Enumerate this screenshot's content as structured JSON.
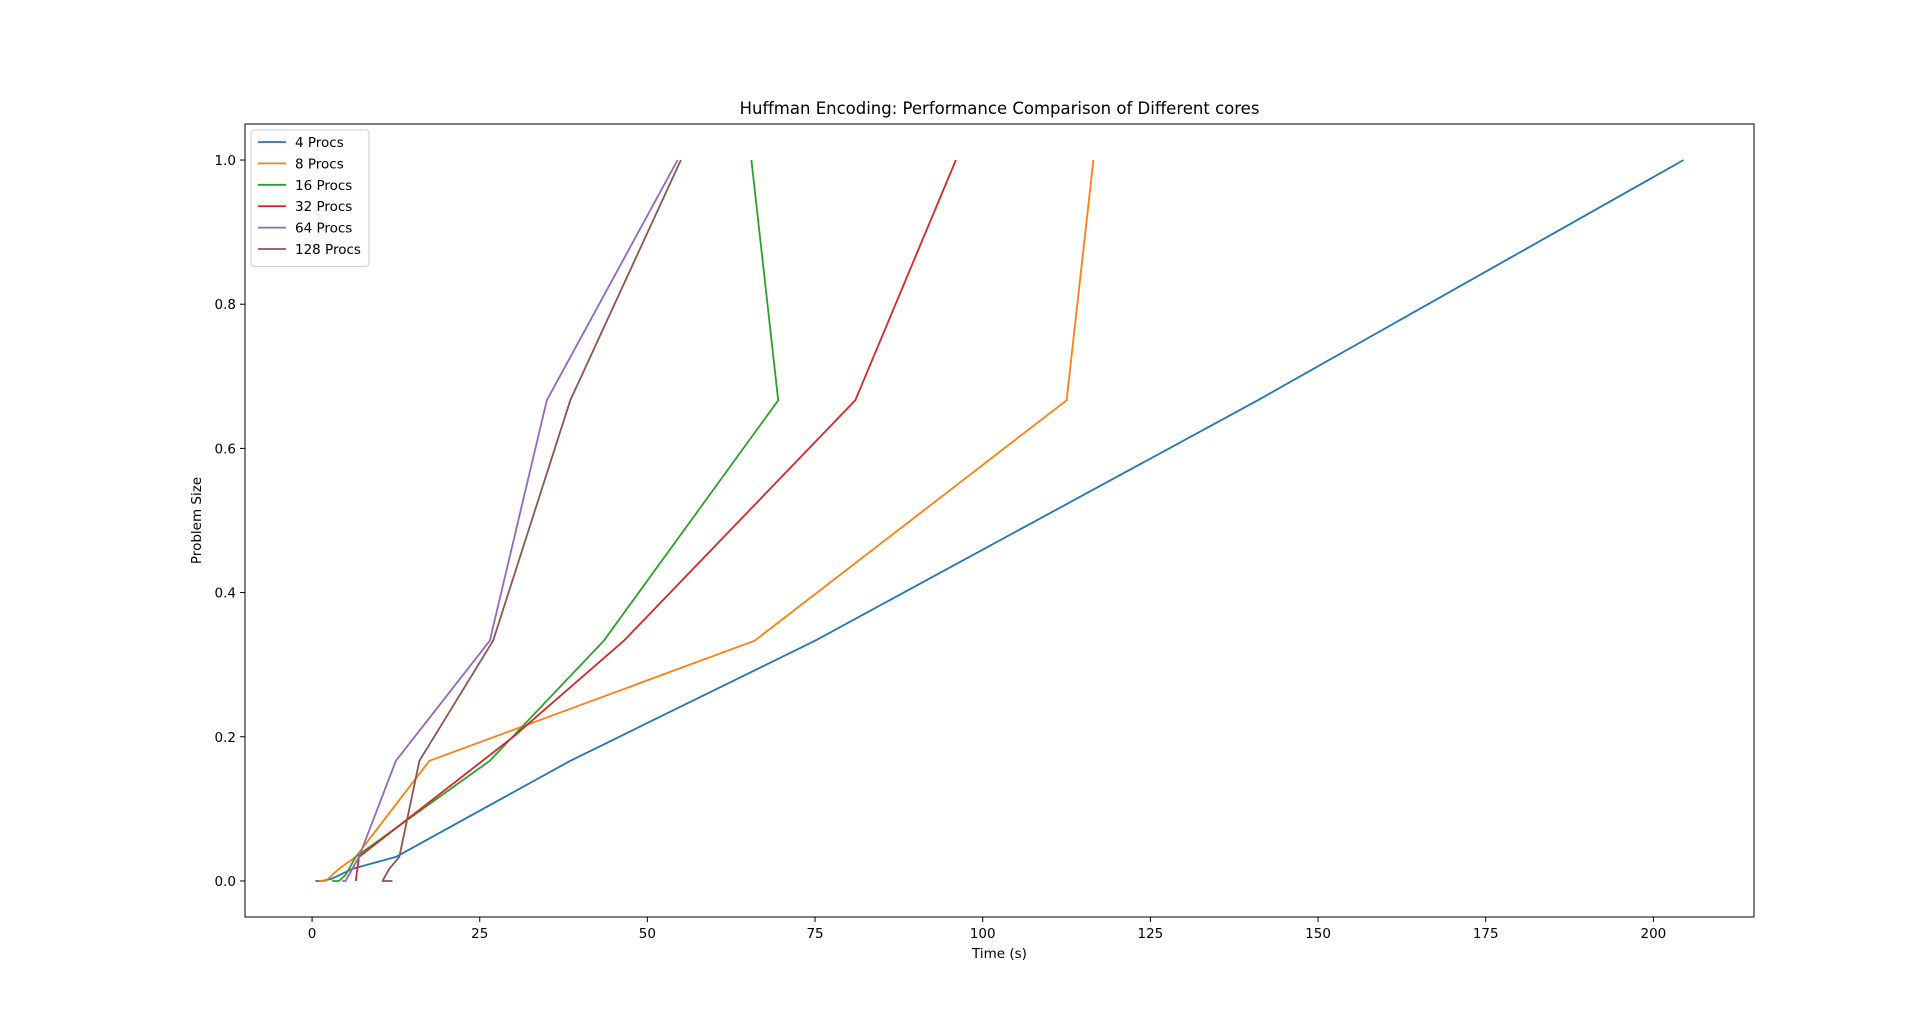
{
  "chart_data": {
    "type": "line",
    "title": "Huffman Encoding: Performance Comparison of Different cores",
    "xlabel": "Time (s)",
    "ylabel": "Problem Size",
    "xlim": [
      -10,
      215
    ],
    "ylim": [
      -0.05,
      1.05
    ],
    "xticks": [
      0,
      25,
      50,
      75,
      100,
      125,
      150,
      175,
      200
    ],
    "yticks": [
      0.0,
      0.2,
      0.4,
      0.6,
      0.8,
      1.0
    ],
    "grid": false,
    "legend": "top-left",
    "series": [
      {
        "name": "4 Procs",
        "color": "#1f77b4",
        "x": [
          0.5,
          1.5,
          3.0,
          6.0,
          12.5,
          38.5,
          75.0,
          141.0,
          204.5
        ],
        "y": [
          0.0,
          0.0,
          0.0033,
          0.0167,
          0.0333,
          0.1667,
          0.3333,
          0.6667,
          1.0
        ]
      },
      {
        "name": "8 Procs",
        "color": "#ff7f0e",
        "x": [
          1.0,
          2.0,
          4.0,
          6.5,
          17.5,
          66.0,
          112.5,
          116.5
        ],
        "y": [
          0.0,
          0.0,
          0.0167,
          0.0333,
          0.1667,
          0.3333,
          0.6667,
          1.0
        ]
      },
      {
        "name": "16 Procs",
        "color": "#2ca02c",
        "x": [
          3.0,
          4.0,
          5.0,
          6.5,
          26.5,
          43.5,
          69.5,
          65.5
        ],
        "y": [
          0.0,
          0.0,
          0.0083,
          0.0333,
          0.1667,
          0.3333,
          0.6667,
          1.0
        ]
      },
      {
        "name": "32 Procs",
        "color": "#d62728",
        "x": [
          6.5,
          6.5,
          6.5,
          7.0,
          30.0,
          46.5,
          81.0,
          96.0
        ],
        "y": [
          0.0,
          0.0,
          0.0,
          0.0333,
          0.2,
          0.3333,
          0.6667,
          1.0
        ]
      },
      {
        "name": "64 Procs",
        "color": "#9467bd",
        "x": [
          4.5,
          5.0,
          6.0,
          7.0,
          12.5,
          26.5,
          35.0,
          54.5
        ],
        "y": [
          0.0,
          0.0,
          0.0167,
          0.0333,
          0.1667,
          0.3333,
          0.6667,
          1.0
        ]
      },
      {
        "name": "128 Procs",
        "color": "#8c564b",
        "x": [
          12.0,
          10.5,
          11.5,
          13.0,
          16.0,
          27.0,
          38.5,
          55.0
        ],
        "y": [
          0.0,
          0.0,
          0.0167,
          0.0333,
          0.1667,
          0.3333,
          0.6667,
          1.0
        ]
      }
    ]
  }
}
